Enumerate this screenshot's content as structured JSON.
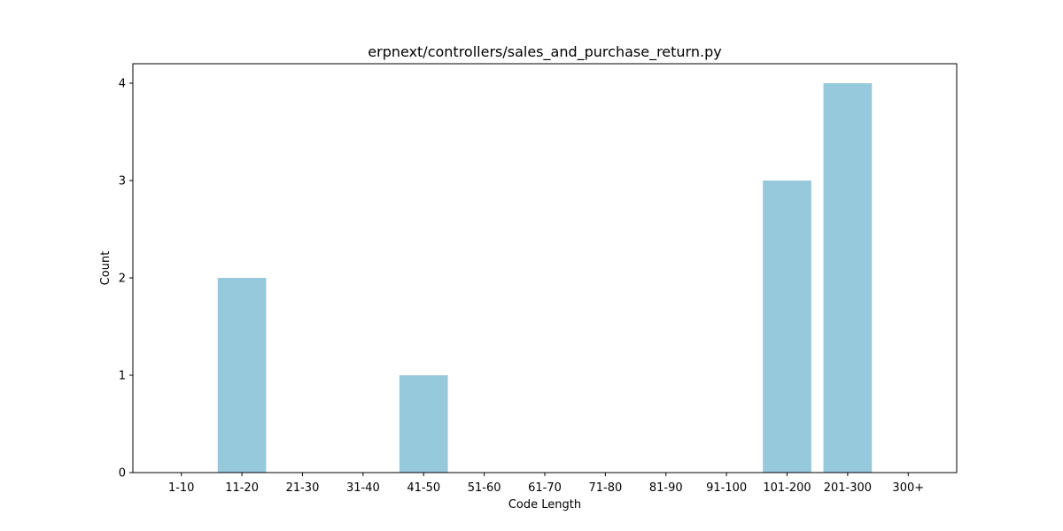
{
  "chart_data": {
    "type": "bar",
    "title": "erpnext/controllers/sales_and_purchase_return.py",
    "xlabel": "Code Length",
    "ylabel": "Count",
    "categories": [
      "1-10",
      "11-20",
      "21-30",
      "31-40",
      "41-50",
      "51-60",
      "61-70",
      "71-80",
      "81-90",
      "91-100",
      "101-200",
      "201-300",
      "300+"
    ],
    "values": [
      0,
      2,
      0,
      0,
      1,
      0,
      0,
      0,
      0,
      0,
      3,
      4,
      0
    ],
    "ylim": [
      0,
      4.2
    ],
    "yticks": [
      0,
      1,
      2,
      3,
      4
    ],
    "bar_color": "#96c9dc",
    "grid": false,
    "legend": "none"
  }
}
